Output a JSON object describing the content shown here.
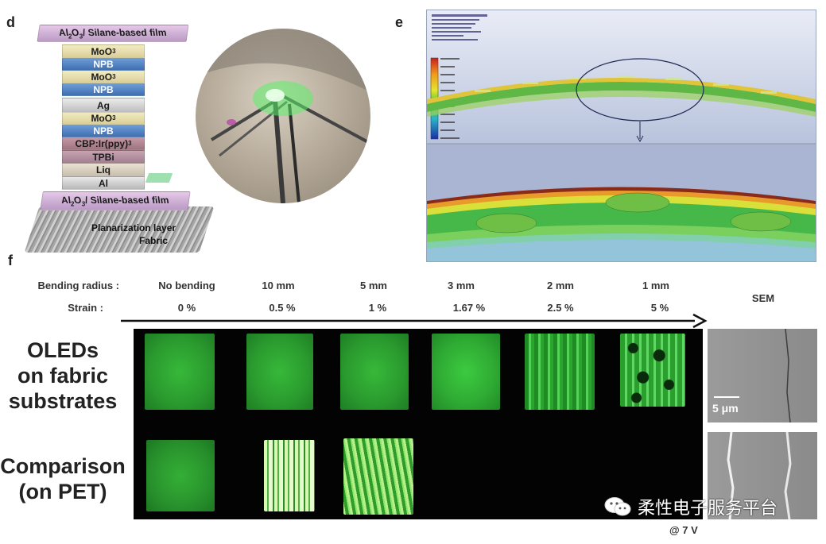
{
  "panel_d": {
    "letter": "d",
    "layers": [
      {
        "base": "Al",
        "sub": "2",
        "rest": "O",
        "sub2": "3",
        "tail": "/ Silane-based film"
      },
      {
        "base": "MoO",
        "sub": "3"
      },
      {
        "base": "NPB"
      },
      {
        "base": "MoO",
        "sub": "3"
      },
      {
        "base": "NPB"
      },
      {
        "base": "Ag"
      },
      {
        "base": "MoO",
        "sub": "3"
      },
      {
        "base": "NPB"
      },
      {
        "base": "CBP:Ir(ppy)",
        "sub": "3"
      },
      {
        "base": "TPBi"
      },
      {
        "base": "Liq"
      },
      {
        "base": "Al"
      },
      {
        "base": "Al",
        "sub": "2",
        "rest": "O",
        "sub2": "3",
        "tail": "/ Silane-based film"
      }
    ],
    "planarization_label": "Planarization layer",
    "fabric_label": "Fabric"
  },
  "panel_e": {
    "letter": "e"
  },
  "panel_f": {
    "letter": "f",
    "bending_label": "Bending radius :",
    "strain_label": "Strain :",
    "columns": [
      {
        "radius": "No bending",
        "strain": "0 %"
      },
      {
        "radius": "10 mm",
        "strain": "0.5 %"
      },
      {
        "radius": "5 mm",
        "strain": "1 %"
      },
      {
        "radius": "3 mm",
        "strain": "1.67 %"
      },
      {
        "radius": "2 mm",
        "strain": "2.5 %"
      },
      {
        "radius": "1 mm",
        "strain": "5 %"
      }
    ],
    "sem_label": "SEM",
    "row1_label_l1": "OLEDs",
    "row1_label_l2": "on fabric",
    "row1_label_l3": "substrates",
    "row2_label_l1": "Comparison",
    "row2_label_l2": "(on PET)",
    "scale_bar": "5 μm",
    "voltage": "@ 7 V"
  },
  "watermark": {
    "text": "柔性电子服务平台"
  },
  "colors": {
    "oled_green": "#2ea532",
    "film_purple": "#c9a8d3",
    "npb_blue": "#4f7fc0"
  }
}
